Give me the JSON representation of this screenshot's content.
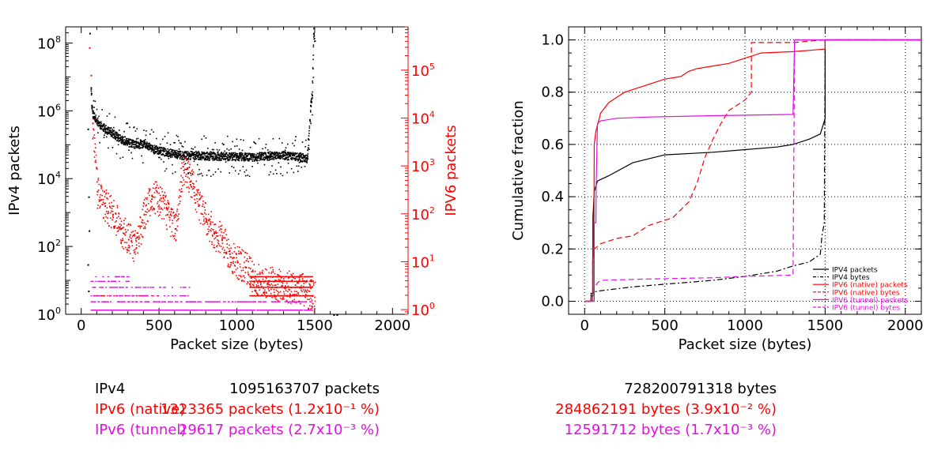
{
  "colors": {
    "ipv4": "#000000",
    "ipv6_native": "#ff0000",
    "ipv6_tunnel": "#e010e0",
    "grid": "#000000"
  },
  "chart_data": [
    {
      "type": "scatter",
      "xlabel": "Packet size (bytes)",
      "ylabel": "IPv4 packets",
      "y2label": "IPV6 packets",
      "xlim": [
        -100,
        2100
      ],
      "ylim": [
        1,
        300000000
      ],
      "y2lim": [
        0.8,
        800000
      ],
      "yscale": "log",
      "y2scale": "log",
      "x_ticks": [
        "0",
        "500",
        "1000",
        "1500",
        "2000"
      ],
      "y_ticks": [
        "10^0",
        "10^2",
        "10^4",
        "10^6",
        "10^8"
      ],
      "y2_ticks": [
        "10^0",
        "10^1",
        "10^2",
        "10^3",
        "10^4",
        "10^5"
      ],
      "series": [
        {
          "name": "IPv4 packets",
          "axis": "y",
          "color": "#000000",
          "points": [
            [
              40,
              300000
            ],
            [
              52,
              200000000
            ],
            [
              60,
              5000000
            ],
            [
              64,
              1500000
            ],
            [
              70,
              900000
            ],
            [
              80,
              700000
            ],
            [
              100,
              500000
            ],
            [
              120,
              400000
            ],
            [
              150,
              300000
            ],
            [
              200,
              220000
            ],
            [
              250,
              150000
            ],
            [
              300,
              120000
            ],
            [
              350,
              100000
            ],
            [
              400,
              110000
            ],
            [
              450,
              80000
            ],
            [
              500,
              70000
            ],
            [
              550,
              60000
            ],
            [
              600,
              55000
            ],
            [
              650,
              50000
            ],
            [
              700,
              50000
            ],
            [
              750,
              50000
            ],
            [
              800,
              48000
            ],
            [
              900,
              47000
            ],
            [
              1000,
              46000
            ],
            [
              1100,
              45000
            ],
            [
              1200,
              48000
            ],
            [
              1300,
              50000
            ],
            [
              1400,
              45000
            ],
            [
              1450,
              40000
            ],
            [
              1470,
              1500000
            ],
            [
              1480,
              3000000
            ],
            [
              1490,
              200000000
            ],
            [
              1620,
              1
            ],
            [
              1640,
              1
            ]
          ]
        },
        {
          "name": "IPv6 (native) packets",
          "axis": "y2",
          "color": "#ff0000",
          "points": [
            [
              50,
              300000
            ],
            [
              60,
              80000
            ],
            [
              70,
              8000
            ],
            [
              100,
              300
            ],
            [
              120,
              200
            ],
            [
              150,
              150
            ],
            [
              200,
              100
            ],
            [
              250,
              50
            ],
            [
              300,
              30
            ],
            [
              350,
              20
            ],
            [
              400,
              100
            ],
            [
              450,
              250
            ],
            [
              500,
              200
            ],
            [
              550,
              100
            ],
            [
              600,
              50
            ],
            [
              650,
              1000
            ],
            [
              700,
              500
            ],
            [
              750,
              150
            ],
            [
              800,
              80
            ],
            [
              850,
              40
            ],
            [
              900,
              30
            ],
            [
              950,
              15
            ],
            [
              1000,
              10
            ],
            [
              1050,
              8
            ],
            [
              1100,
              5
            ],
            [
              1200,
              4
            ],
            [
              1300,
              3
            ],
            [
              1400,
              3
            ],
            [
              1480,
              2
            ]
          ]
        },
        {
          "name": "IPv6 (tunnel) packets",
          "axis": "y2",
          "color": "#e010e0",
          "points": [
            [
              60,
              4
            ],
            [
              100,
              3
            ],
            [
              150,
              2
            ],
            [
              200,
              2
            ],
            [
              300,
              2
            ],
            [
              400,
              2
            ],
            [
              500,
              2
            ],
            [
              600,
              1.5
            ],
            [
              700,
              1.5
            ],
            [
              900,
              1.5
            ],
            [
              1100,
              1.5
            ],
            [
              1300,
              1.5
            ]
          ]
        }
      ]
    },
    {
      "type": "line",
      "xlabel": "Packet size (bytes)",
      "ylabel": "Cumulative fraction",
      "xlim": [
        -100,
        2100
      ],
      "ylim": [
        -0.05,
        1.05
      ],
      "x_ticks": [
        "0",
        "500",
        "1000",
        "1500",
        "2000"
      ],
      "y_ticks": [
        "0.0",
        "0.2",
        "0.4",
        "0.6",
        "0.8",
        "1.0"
      ],
      "grid": true,
      "legend": "bottom-right",
      "series": [
        {
          "name": "IPV4 packets",
          "style": "solid",
          "color": "#000000",
          "points": [
            [
              0,
              0
            ],
            [
              40,
              0
            ],
            [
              40,
              0.03
            ],
            [
              52,
              0.03
            ],
            [
              52,
              0.32
            ],
            [
              60,
              0.42
            ],
            [
              80,
              0.46
            ],
            [
              150,
              0.48
            ],
            [
              300,
              0.53
            ],
            [
              500,
              0.56
            ],
            [
              800,
              0.57
            ],
            [
              1000,
              0.58
            ],
            [
              1200,
              0.59
            ],
            [
              1300,
              0.6
            ],
            [
              1400,
              0.62
            ],
            [
              1470,
              0.64
            ],
            [
              1500,
              0.7
            ],
            [
              1500,
              1.0
            ],
            [
              2100,
              1.0
            ]
          ]
        },
        {
          "name": "IPV4 bytes",
          "style": "dashdot",
          "color": "#000000",
          "points": [
            [
              0,
              0
            ],
            [
              40,
              0
            ],
            [
              40,
              0.02
            ],
            [
              52,
              0.02
            ],
            [
              52,
              0.035
            ],
            [
              100,
              0.04
            ],
            [
              300,
              0.055
            ],
            [
              500,
              0.065
            ],
            [
              800,
              0.08
            ],
            [
              1000,
              0.095
            ],
            [
              1200,
              0.115
            ],
            [
              1300,
              0.135
            ],
            [
              1400,
              0.15
            ],
            [
              1470,
              0.18
            ],
            [
              1480,
              0.25
            ],
            [
              1495,
              0.3
            ],
            [
              1500,
              1.0
            ],
            [
              2100,
              1.0
            ]
          ]
        },
        {
          "name": "IPV6 (native) packets",
          "style": "solid",
          "color": "#ff0000",
          "points": [
            [
              0,
              0
            ],
            [
              50,
              0
            ],
            [
              50,
              0.17
            ],
            [
              58,
              0.17
            ],
            [
              60,
              0.6
            ],
            [
              70,
              0.65
            ],
            [
              100,
              0.72
            ],
            [
              150,
              0.76
            ],
            [
              200,
              0.78
            ],
            [
              250,
              0.8
            ],
            [
              300,
              0.81
            ],
            [
              400,
              0.83
            ],
            [
              500,
              0.85
            ],
            [
              600,
              0.86
            ],
            [
              650,
              0.88
            ],
            [
              700,
              0.89
            ],
            [
              800,
              0.9
            ],
            [
              900,
              0.91
            ],
            [
              1000,
              0.93
            ],
            [
              1050,
              0.94
            ],
            [
              1100,
              0.95
            ],
            [
              1300,
              0.955
            ],
            [
              1400,
              0.96
            ],
            [
              1500,
              0.965
            ],
            [
              1500,
              1.0
            ],
            [
              2100,
              1.0
            ]
          ]
        },
        {
          "name": "IPV6 (native) bytes",
          "style": "dashed",
          "color": "#ff0000",
          "points": [
            [
              0,
              0
            ],
            [
              50,
              0
            ],
            [
              50,
              0.15
            ],
            [
              60,
              0.15
            ],
            [
              60,
              0.2
            ],
            [
              100,
              0.22
            ],
            [
              200,
              0.24
            ],
            [
              300,
              0.25
            ],
            [
              400,
              0.29
            ],
            [
              500,
              0.31
            ],
            [
              550,
              0.32
            ],
            [
              600,
              0.35
            ],
            [
              650,
              0.38
            ],
            [
              700,
              0.45
            ],
            [
              750,
              0.55
            ],
            [
              800,
              0.62
            ],
            [
              850,
              0.68
            ],
            [
              900,
              0.73
            ],
            [
              950,
              0.75
            ],
            [
              1000,
              0.77
            ],
            [
              1040,
              0.8
            ],
            [
              1040,
              0.99
            ],
            [
              1300,
              0.99
            ],
            [
              1500,
              1.0
            ],
            [
              2100,
              1.0
            ]
          ]
        },
        {
          "name": "IPV6 (tunnel) packets",
          "style": "solid",
          "color": "#e010e0",
          "points": [
            [
              0,
              0
            ],
            [
              60,
              0
            ],
            [
              60,
              0.3
            ],
            [
              70,
              0.3
            ],
            [
              72,
              0.45
            ],
            [
              80,
              0.68
            ],
            [
              100,
              0.69
            ],
            [
              200,
              0.7
            ],
            [
              400,
              0.705
            ],
            [
              800,
              0.71
            ],
            [
              1300,
              0.715
            ],
            [
              1310,
              1.0
            ],
            [
              2100,
              1.0
            ]
          ]
        },
        {
          "name": "IPV6 (tunnel) bytes",
          "style": "dashed",
          "color": "#e010e0",
          "points": [
            [
              0,
              0
            ],
            [
              60,
              0
            ],
            [
              60,
              0.05
            ],
            [
              80,
              0.07
            ],
            [
              100,
              0.08
            ],
            [
              400,
              0.085
            ],
            [
              800,
              0.09
            ],
            [
              1000,
              0.095
            ],
            [
              1300,
              0.1
            ],
            [
              1310,
              1.0
            ],
            [
              2100,
              1.0
            ]
          ]
        }
      ]
    }
  ],
  "summary": [
    {
      "name": "IPv4",
      "packets": "1095163707 packets",
      "bytes": "728200791318 bytes",
      "color": "#000000"
    },
    {
      "name": "IPv6 (native)",
      "packets": "1323365 packets (1.2x10⁻¹ %)",
      "bytes": "284862191 bytes (3.9x10⁻² %)",
      "color": "#ff0000"
    },
    {
      "name": "IPv6 (tunnel)",
      "packets": "29617 packets (2.7x10⁻³ %)",
      "bytes": "12591712 bytes (1.7x10⁻³ %)",
      "color": "#e010e0"
    }
  ]
}
